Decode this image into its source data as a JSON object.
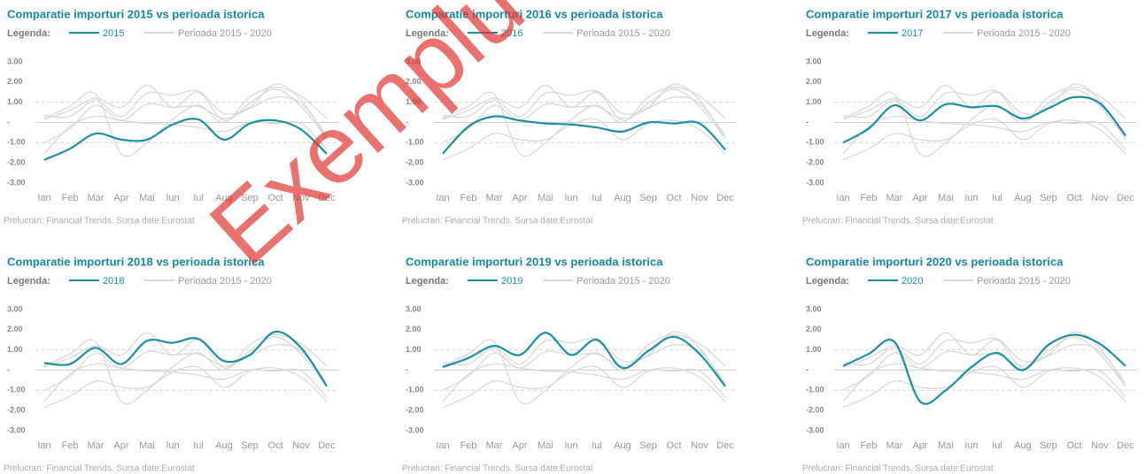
{
  "watermark": "Exemplu",
  "chart_data": [
    {
      "type": "line",
      "title": "Comparatie importuri 2015 vs perioada istorica",
      "legend_title": "Legenda:",
      "source": "Prelucrari: Financial Trends. Sursa date:Eurostat",
      "categories": [
        "Ian",
        "Feb",
        "Mar",
        "Apr",
        "Mai",
        "Iun",
        "Iul",
        "Aug",
        "Sep",
        "Oct",
        "Nov",
        "Dec"
      ],
      "series": [
        {
          "name": "2015",
          "color": "#1a91a0",
          "values": [
            -1.85,
            -1.3,
            -0.55,
            -0.85,
            -0.85,
            -0.1,
            0.15,
            -0.85,
            -0.05,
            0.1,
            -0.35,
            -1.55
          ]
        }
      ],
      "period_legend": {
        "name": "Perioada 2015 - 2020",
        "color": "#d9d9d9"
      },
      "ylim": [
        -3,
        3
      ],
      "yticks": [
        {
          "value": 3,
          "label": "3.00"
        },
        {
          "value": 2,
          "label": "2.00"
        },
        {
          "value": 1,
          "label": "1.00"
        },
        {
          "value": 0,
          "label": "-"
        },
        {
          "value": -1,
          "label": "-1.00"
        },
        {
          "value": -2,
          "label": "-2.00"
        },
        {
          "value": -3,
          "label": "-3.00"
        }
      ],
      "reference_lines": [
        {
          "value": 1,
          "style": "dashed"
        },
        {
          "value": 0,
          "style": "solid"
        },
        {
          "value": -1,
          "style": "dashed"
        }
      ]
    },
    {
      "type": "line",
      "title": "Comparatie importuri 2016 vs perioada istorica",
      "legend_title": "Legenda:",
      "source": "Prelucrari: Financial Trends. Sursa date:Eurostat",
      "categories": [
        "Ian",
        "Feb",
        "Mar",
        "Apr",
        "Mai",
        "Iun",
        "Iul",
        "Aug",
        "Sep",
        "Oct",
        "Nov",
        "Dec"
      ],
      "series": [
        {
          "name": "2016",
          "color": "#1a91a0",
          "values": [
            -1.55,
            -0.2,
            0.3,
            0.1,
            -0.05,
            -0.1,
            -0.25,
            -0.45,
            0.0,
            -0.05,
            -0.05,
            -1.35
          ]
        }
      ],
      "period_legend": {
        "name": "Perioada 2015 - 2020",
        "color": "#d9d9d9"
      },
      "ylim": [
        -3,
        3
      ],
      "yticks": [
        {
          "value": 3,
          "label": "3.00"
        },
        {
          "value": 2,
          "label": "2.00"
        },
        {
          "value": 1,
          "label": "1.00"
        },
        {
          "value": 0,
          "label": "-"
        },
        {
          "value": -1,
          "label": "-1.00"
        },
        {
          "value": -2,
          "label": "-2.00"
        },
        {
          "value": -3,
          "label": "-3.00"
        }
      ],
      "reference_lines": [
        {
          "value": 1,
          "style": "dashed"
        },
        {
          "value": 0,
          "style": "solid"
        },
        {
          "value": -1,
          "style": "dashed"
        }
      ]
    },
    {
      "type": "line",
      "title": "Comparatie importuri 2017 vs perioada istorica",
      "legend_title": "Legenda:",
      "source": "Prelucrari: Financial Trends. Sursa date:Eurostat",
      "categories": [
        "Ian",
        "Feb",
        "Mar",
        "Apr",
        "Mai",
        "Iun",
        "Iul",
        "Aug",
        "Sep",
        "Oct",
        "Nov",
        "Dec"
      ],
      "series": [
        {
          "name": "2017",
          "color": "#1a91a0",
          "values": [
            -1.0,
            -0.3,
            0.85,
            0.1,
            0.9,
            0.75,
            0.8,
            0.2,
            0.7,
            1.25,
            0.95,
            -0.65
          ]
        }
      ],
      "period_legend": {
        "name": "Perioada 2015 - 2020",
        "color": "#d9d9d9"
      },
      "ylim": [
        -3,
        3
      ],
      "yticks": [
        {
          "value": 3,
          "label": "3.00"
        },
        {
          "value": 2,
          "label": "2.00"
        },
        {
          "value": 1,
          "label": "1.00"
        },
        {
          "value": 0,
          "label": "-"
        },
        {
          "value": -1,
          "label": "-1.00"
        },
        {
          "value": -2,
          "label": "-2.00"
        },
        {
          "value": -3,
          "label": "-3.00"
        }
      ],
      "reference_lines": [
        {
          "value": 1,
          "style": "dashed"
        },
        {
          "value": 0,
          "style": "solid"
        },
        {
          "value": -1,
          "style": "dashed"
        }
      ]
    },
    {
      "type": "line",
      "title": "Comparatie importuri 2018 vs perioada istorica",
      "legend_title": "Legenda:",
      "source": "Prelucrari: Financial Trends. Sursa date:Eurostat",
      "categories": [
        "Ian",
        "Feb",
        "Mar",
        "Apr",
        "Mai",
        "Iun",
        "Iul",
        "Aug",
        "Sep",
        "Oct",
        "Nov",
        "Dec"
      ],
      "series": [
        {
          "name": "2018",
          "color": "#1a91a0",
          "values": [
            0.35,
            0.3,
            1.1,
            0.3,
            1.45,
            1.35,
            1.55,
            0.45,
            0.75,
            1.9,
            1.1,
            -0.8
          ]
        }
      ],
      "period_legend": {
        "name": "Perioada 2015 - 2020",
        "color": "#d9d9d9"
      },
      "ylim": [
        -3,
        3
      ],
      "yticks": [
        {
          "value": 3,
          "label": "3.00"
        },
        {
          "value": 2,
          "label": "2.00"
        },
        {
          "value": 1,
          "label": "1.00"
        },
        {
          "value": 0,
          "label": "-"
        },
        {
          "value": -1,
          "label": "-1.00"
        },
        {
          "value": -2,
          "label": "-2.00"
        },
        {
          "value": -3,
          "label": "-3.00"
        }
      ],
      "reference_lines": [
        {
          "value": 1,
          "style": "dashed"
        },
        {
          "value": 0,
          "style": "solid"
        },
        {
          "value": -1,
          "style": "dashed"
        }
      ]
    },
    {
      "type": "line",
      "title": "Comparatie importuri 2019 vs perioada istorica",
      "legend_title": "Legenda:",
      "source": "Prelucrari: Financial Trends. Sursa date:Eurostat",
      "categories": [
        "Ian",
        "Feb",
        "Mar",
        "Apr",
        "Mai",
        "Iun",
        "Iul",
        "Aug",
        "Sep",
        "Oct",
        "Nov",
        "Dec"
      ],
      "series": [
        {
          "name": "2019",
          "color": "#1a91a0",
          "values": [
            0.15,
            0.6,
            1.2,
            0.75,
            1.85,
            0.75,
            1.5,
            0.1,
            0.95,
            1.65,
            0.8,
            -0.8
          ]
        }
      ],
      "period_legend": {
        "name": "Perioada 2015 - 2020",
        "color": "#d9d9d9"
      },
      "ylim": [
        -3,
        3
      ],
      "yticks": [
        {
          "value": 3,
          "label": "3.00"
        },
        {
          "value": 2,
          "label": "2.00"
        },
        {
          "value": 1,
          "label": "1.00"
        },
        {
          "value": 0,
          "label": "-"
        },
        {
          "value": -1,
          "label": "-1.00"
        },
        {
          "value": -2,
          "label": "-2.00"
        },
        {
          "value": -3,
          "label": "-3.00"
        }
      ],
      "reference_lines": [
        {
          "value": 1,
          "style": "dashed"
        },
        {
          "value": 0,
          "style": "solid"
        },
        {
          "value": -1,
          "style": "dashed"
        }
      ]
    },
    {
      "type": "line",
      "title": "Comparatie importuri 2020 vs perioada istorica",
      "legend_title": "Legenda:",
      "source": "Prelucrari: Financial Trends. Sursa date:Eurostat",
      "categories": [
        "Ian",
        "Feb",
        "Mar",
        "Apr",
        "Mai",
        "Iun",
        "Iul",
        "Aug",
        "Sep",
        "Oct",
        "Nov",
        "Dec"
      ],
      "series": [
        {
          "name": "2020",
          "color": "#1a91a0",
          "values": [
            0.2,
            0.8,
            1.4,
            -1.55,
            -1.0,
            0.15,
            0.85,
            0.0,
            1.25,
            1.75,
            1.3,
            0.2
          ]
        }
      ],
      "period_legend": {
        "name": "Perioada 2015 - 2020",
        "color": "#d9d9d9"
      },
      "ylim": [
        -3,
        3
      ],
      "yticks": [
        {
          "value": 3,
          "label": "3.00"
        },
        {
          "value": 2,
          "label": "2.00"
        },
        {
          "value": 1,
          "label": "1.00"
        },
        {
          "value": 0,
          "label": "-"
        },
        {
          "value": -1,
          "label": "-1.00"
        },
        {
          "value": -2,
          "label": "-2.00"
        },
        {
          "value": -3,
          "label": "-3.00"
        }
      ],
      "reference_lines": [
        {
          "value": 1,
          "style": "dashed"
        },
        {
          "value": 0,
          "style": "solid"
        },
        {
          "value": -1,
          "style": "dashed"
        }
      ]
    }
  ]
}
